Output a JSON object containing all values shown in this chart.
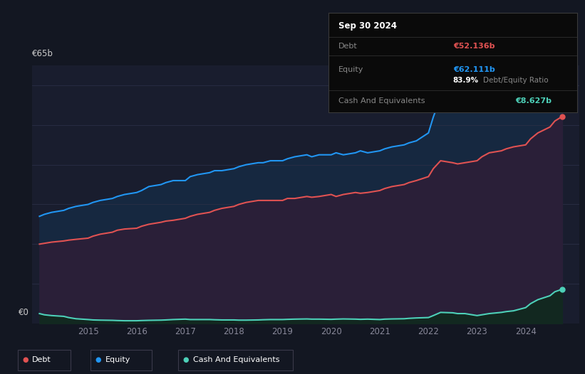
{
  "bg_color": "#131722",
  "plot_bg_color": "#191d2e",
  "grid_color": "#2a2e3d",
  "debt_color": "#e05252",
  "equity_color": "#2196f3",
  "cash_color": "#4dd0b8",
  "debt_label": "Debt",
  "equity_label": "Equity",
  "cash_label": "Cash And Equivalents",
  "tooltip_date": "Sep 30 2024",
  "tooltip_debt_val": "€52.136b",
  "tooltip_equity_val": "€62.111b",
  "tooltip_ratio": "83.9% Debt/Equity Ratio",
  "tooltip_cash_val": "€8.627b",
  "ylabel_65": "€65b",
  "ylabel_0": "€0",
  "years": [
    2014.0,
    2014.1,
    2014.25,
    2014.5,
    2014.6,
    2014.75,
    2015.0,
    2015.1,
    2015.25,
    2015.5,
    2015.6,
    2015.75,
    2016.0,
    2016.1,
    2016.25,
    2016.5,
    2016.6,
    2016.75,
    2017.0,
    2017.1,
    2017.25,
    2017.5,
    2017.6,
    2017.75,
    2018.0,
    2018.1,
    2018.25,
    2018.5,
    2018.6,
    2018.75,
    2019.0,
    2019.1,
    2019.25,
    2019.5,
    2019.6,
    2019.75,
    2020.0,
    2020.1,
    2020.25,
    2020.5,
    2020.6,
    2020.75,
    2021.0,
    2021.1,
    2021.25,
    2021.5,
    2021.6,
    2021.75,
    2022.0,
    2022.1,
    2022.25,
    2022.5,
    2022.6,
    2022.75,
    2023.0,
    2023.1,
    2023.25,
    2023.5,
    2023.6,
    2023.75,
    2024.0,
    2024.1,
    2024.25,
    2024.5,
    2024.6,
    2024.75
  ],
  "equity": [
    27.0,
    27.5,
    28.0,
    28.5,
    29.0,
    29.5,
    30.0,
    30.5,
    31.0,
    31.5,
    32.0,
    32.5,
    33.0,
    33.5,
    34.5,
    35.0,
    35.5,
    36.0,
    36.0,
    37.0,
    37.5,
    38.0,
    38.5,
    38.5,
    39.0,
    39.5,
    40.0,
    40.5,
    40.5,
    41.0,
    41.0,
    41.5,
    42.0,
    42.5,
    42.0,
    42.5,
    42.5,
    43.0,
    42.5,
    43.0,
    43.5,
    43.0,
    43.5,
    44.0,
    44.5,
    45.0,
    45.5,
    46.0,
    48.0,
    52.0,
    57.0,
    55.5,
    55.0,
    54.0,
    53.5,
    54.0,
    55.0,
    55.5,
    56.0,
    56.5,
    57.5,
    59.0,
    60.5,
    61.5,
    62.0,
    62.111
  ],
  "debt": [
    20.0,
    20.2,
    20.5,
    20.8,
    21.0,
    21.2,
    21.5,
    22.0,
    22.5,
    23.0,
    23.5,
    23.8,
    24.0,
    24.5,
    25.0,
    25.5,
    25.8,
    26.0,
    26.5,
    27.0,
    27.5,
    28.0,
    28.5,
    29.0,
    29.5,
    30.0,
    30.5,
    31.0,
    31.0,
    31.0,
    31.0,
    31.5,
    31.5,
    32.0,
    31.8,
    32.0,
    32.5,
    32.0,
    32.5,
    33.0,
    32.8,
    33.0,
    33.5,
    34.0,
    34.5,
    35.0,
    35.5,
    36.0,
    37.0,
    39.0,
    41.0,
    40.5,
    40.2,
    40.5,
    41.0,
    42.0,
    43.0,
    43.5,
    44.0,
    44.5,
    45.0,
    46.5,
    48.0,
    49.5,
    51.0,
    52.136
  ],
  "cash": [
    2.5,
    2.2,
    2.0,
    1.8,
    1.5,
    1.2,
    1.0,
    0.9,
    0.85,
    0.8,
    0.75,
    0.7,
    0.7,
    0.75,
    0.8,
    0.85,
    0.9,
    1.0,
    1.1,
    1.0,
    1.0,
    1.0,
    0.95,
    0.9,
    0.9,
    0.85,
    0.85,
    0.9,
    0.95,
    1.0,
    1.0,
    1.05,
    1.1,
    1.15,
    1.1,
    1.1,
    1.05,
    1.1,
    1.15,
    1.1,
    1.05,
    1.1,
    1.0,
    1.1,
    1.15,
    1.2,
    1.3,
    1.4,
    1.5,
    2.0,
    2.8,
    2.7,
    2.5,
    2.5,
    2.0,
    2.2,
    2.5,
    2.8,
    3.0,
    3.2,
    4.0,
    5.0,
    6.0,
    7.0,
    8.0,
    8.627
  ],
  "ylim": [
    0,
    65
  ],
  "xlim_start": 2013.85,
  "xlim_end": 2025.1
}
